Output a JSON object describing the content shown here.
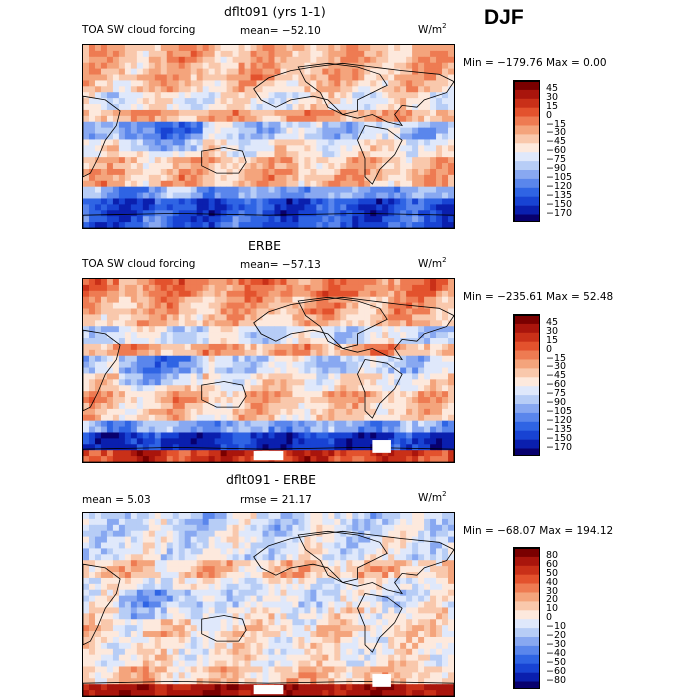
{
  "season": "DJF",
  "colors": {
    "scale": [
      "#08006e",
      "#0a1fae",
      "#1843d3",
      "#2f64e4",
      "#5a86ec",
      "#88a8f1",
      "#b7cdf6",
      "#dfe8fb",
      "#fde9dd",
      "#f9c8ac",
      "#f4a47c",
      "#ee7b52",
      "#e3522d",
      "#c93018",
      "#a9150c",
      "#7a0000"
    ],
    "land_line": "#000000"
  },
  "panels": [
    {
      "id": "model",
      "title": "dflt091 (yrs 1-1)",
      "field_label": "TOA SW cloud forcing",
      "mean_text": "mean= −52.10",
      "units": "W/m",
      "units_exp": "2",
      "minmax": "Min = −179.76  Max =    0.00",
      "colorbar_levels": [
        "45",
        "30",
        "15",
        "0",
        "−15",
        "−30",
        "−45",
        "−60",
        "−75",
        "−90",
        "−105",
        "−120",
        "−135",
        "−150",
        "−170"
      ]
    },
    {
      "id": "obs",
      "title": "ERBE",
      "field_label": "TOA SW cloud forcing",
      "mean_text": "mean= −57.13",
      "units": "W/m",
      "units_exp": "2",
      "minmax": "Min = −235.61  Max =   52.48",
      "colorbar_levels": [
        "45",
        "30",
        "15",
        "0",
        "−15",
        "−30",
        "−45",
        "−60",
        "−75",
        "−90",
        "−105",
        "−120",
        "−135",
        "−150",
        "−170"
      ]
    },
    {
      "id": "diff",
      "title": "dflt091 - ERBE",
      "mean_text": "mean =     5.03",
      "rmse_text": "rmse =   21.17",
      "units": "W/m",
      "units_exp": "2",
      "minmax": "Min = −68.07  Max = 194.12",
      "colorbar_levels": [
        "80",
        "60",
        "50",
        "40",
        "30",
        "20",
        "10",
        "0",
        "−10",
        "−20",
        "−30",
        "−40",
        "−50",
        "−60",
        "−80"
      ]
    }
  ],
  "chart_data": {
    "type": "heatmap",
    "description_source": "three global maps with discrete colorbars",
    "model_band_levels": [
      -30,
      -30,
      -40,
      -60,
      -25,
      -80,
      -55,
      -35,
      -30,
      -100,
      -140,
      -130
    ],
    "obs_band_levels": [
      -10,
      -25,
      -35,
      -70,
      -25,
      -75,
      -50,
      -30,
      -40,
      -100,
      -150,
      20
    ],
    "diff_band_levels": [
      -10,
      -5,
      -5,
      15,
      0,
      -5,
      5,
      10,
      5,
      5,
      15,
      70
    ]
  }
}
